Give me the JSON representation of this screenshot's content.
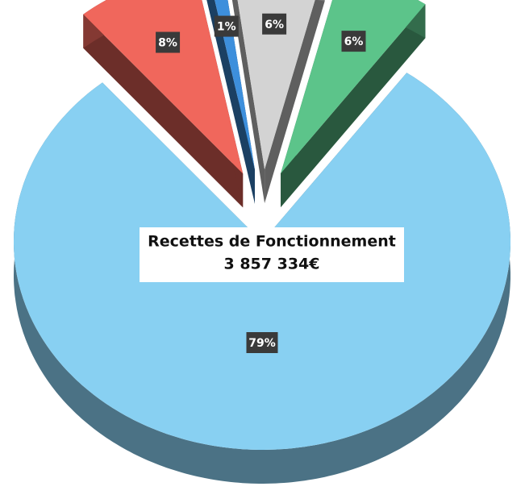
{
  "chart_data": {
    "type": "pie",
    "title": "Recettes de Fonctionnement",
    "subtitle": "3 857 334€",
    "values": [
      8,
      1,
      6,
      6,
      79
    ],
    "value_labels": [
      "8%",
      "1%",
      "6%",
      "6%",
      "79%"
    ],
    "colors": [
      "#f0675c",
      "#3d8fdc",
      "#d3d3d3",
      "#5cc48a",
      "#88d0f2"
    ],
    "explode": [
      true,
      true,
      true,
      true,
      false
    ]
  }
}
